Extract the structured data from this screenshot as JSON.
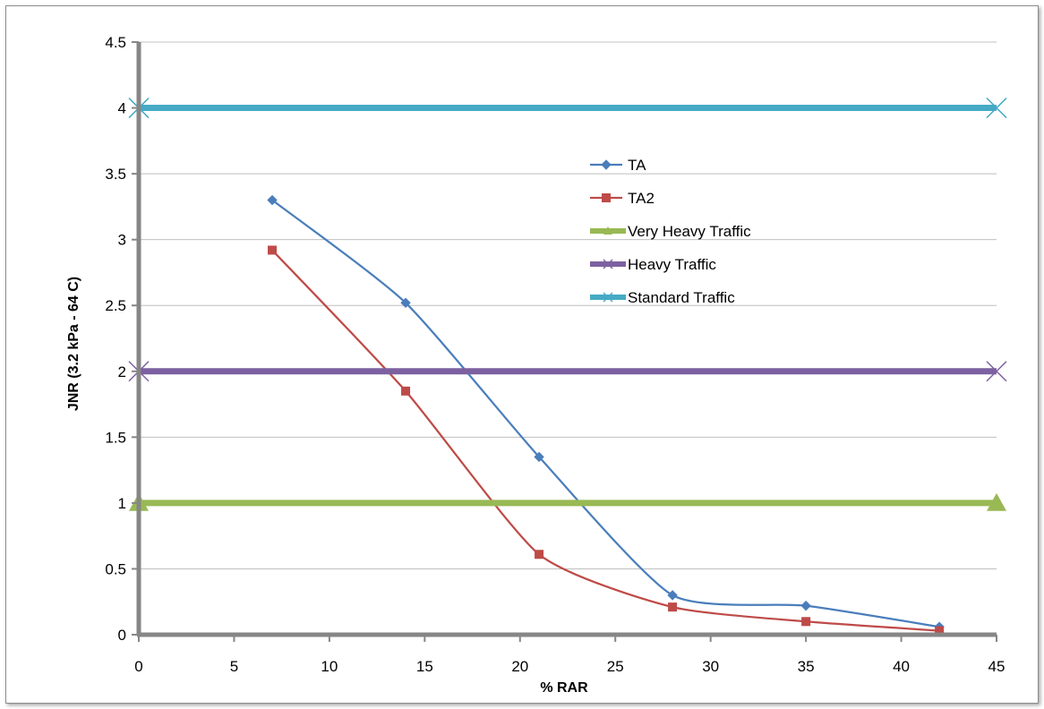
{
  "chart_data": {
    "type": "line",
    "title": "",
    "xlabel": "% RAR",
    "ylabel": "JNR  (3.2 kPa  - 64 C)",
    "xlim": [
      0,
      45
    ],
    "ylim": [
      0,
      4.5
    ],
    "xticks": [
      0,
      5,
      10,
      15,
      20,
      25,
      30,
      35,
      40,
      45
    ],
    "yticks": [
      0,
      0.5,
      1,
      1.5,
      2,
      2.5,
      3,
      3.5,
      4,
      4.5
    ],
    "xtick_labels": [
      "0",
      "5",
      "10",
      "15",
      "20",
      "25",
      "30",
      "35",
      "40",
      "45"
    ],
    "ytick_labels": [
      "0",
      "0.5",
      "1",
      "1.5",
      "2",
      "2.5",
      "3",
      "3.5",
      "4",
      "4.5"
    ],
    "grid": "horizontal",
    "legend_position": "center",
    "series": [
      {
        "name": "TA",
        "color": "#4a7ebb",
        "marker": "diamond",
        "smooth": true,
        "x": [
          7,
          14,
          21,
          28,
          35,
          42
        ],
        "y": [
          3.3,
          2.52,
          1.35,
          0.3,
          0.22,
          0.06
        ]
      },
      {
        "name": "TA2",
        "color": "#be4b48",
        "marker": "square",
        "smooth": true,
        "x": [
          7,
          14,
          21,
          28,
          35,
          42
        ],
        "y": [
          2.92,
          1.85,
          0.61,
          0.21,
          0.1,
          0.03
        ]
      },
      {
        "name": "Very Heavy Traffic",
        "color": "#98b954",
        "marker": "triangle",
        "smooth": false,
        "x": [
          0,
          45
        ],
        "y": [
          1,
          1
        ]
      },
      {
        "name": "Heavy Traffic",
        "color": "#7d60a0",
        "marker": "x",
        "smooth": false,
        "x": [
          0,
          45
        ],
        "y": [
          2,
          2
        ]
      },
      {
        "name": "Standard Traffic",
        "color": "#46aac5",
        "marker": "x",
        "smooth": false,
        "x": [
          0,
          45
        ],
        "y": [
          4,
          4
        ]
      }
    ]
  }
}
